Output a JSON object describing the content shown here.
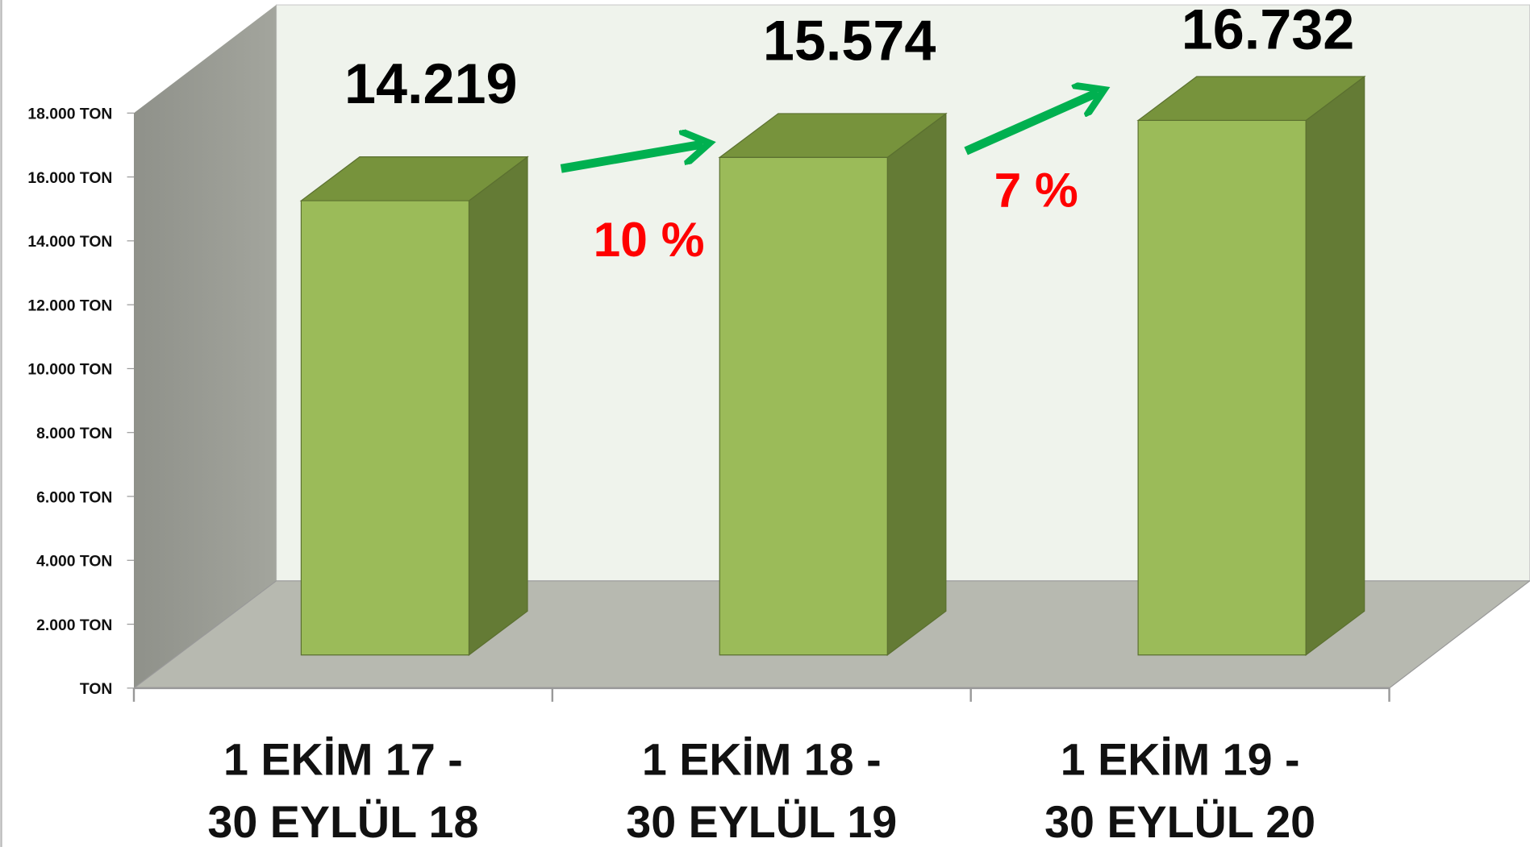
{
  "chart_data": {
    "type": "bar3d",
    "categories": [
      [
        "1 EKİM 17 -",
        "30 EYLÜL 18"
      ],
      [
        "1 EKİM 18 -",
        "30 EYLÜL 19"
      ],
      [
        "1 EKİM 19 -",
        "30 EYLÜL 20"
      ]
    ],
    "values": [
      14219,
      15574,
      16732
    ],
    "value_labels": [
      "14.219",
      "15.574",
      "16.732"
    ],
    "color": "#9bbb59",
    "ylim": [
      0,
      18000
    ],
    "yticks": [
      {
        "value": 0,
        "label": "TON"
      },
      {
        "value": 2000,
        "label": "2.000 TON"
      },
      {
        "value": 4000,
        "label": "4.000 TON"
      },
      {
        "value": 6000,
        "label": "6.000 TON"
      },
      {
        "value": 8000,
        "label": "8.000 TON"
      },
      {
        "value": 10000,
        "label": "10.000 TON"
      },
      {
        "value": 12000,
        "label": "12.000 TON"
      },
      {
        "value": 14000,
        "label": "14.000 TON"
      },
      {
        "value": 16000,
        "label": "16.000 TON"
      },
      {
        "value": 18000,
        "label": "18.000 TON"
      }
    ],
    "annotations": [
      "10 %",
      "7 %"
    ]
  }
}
